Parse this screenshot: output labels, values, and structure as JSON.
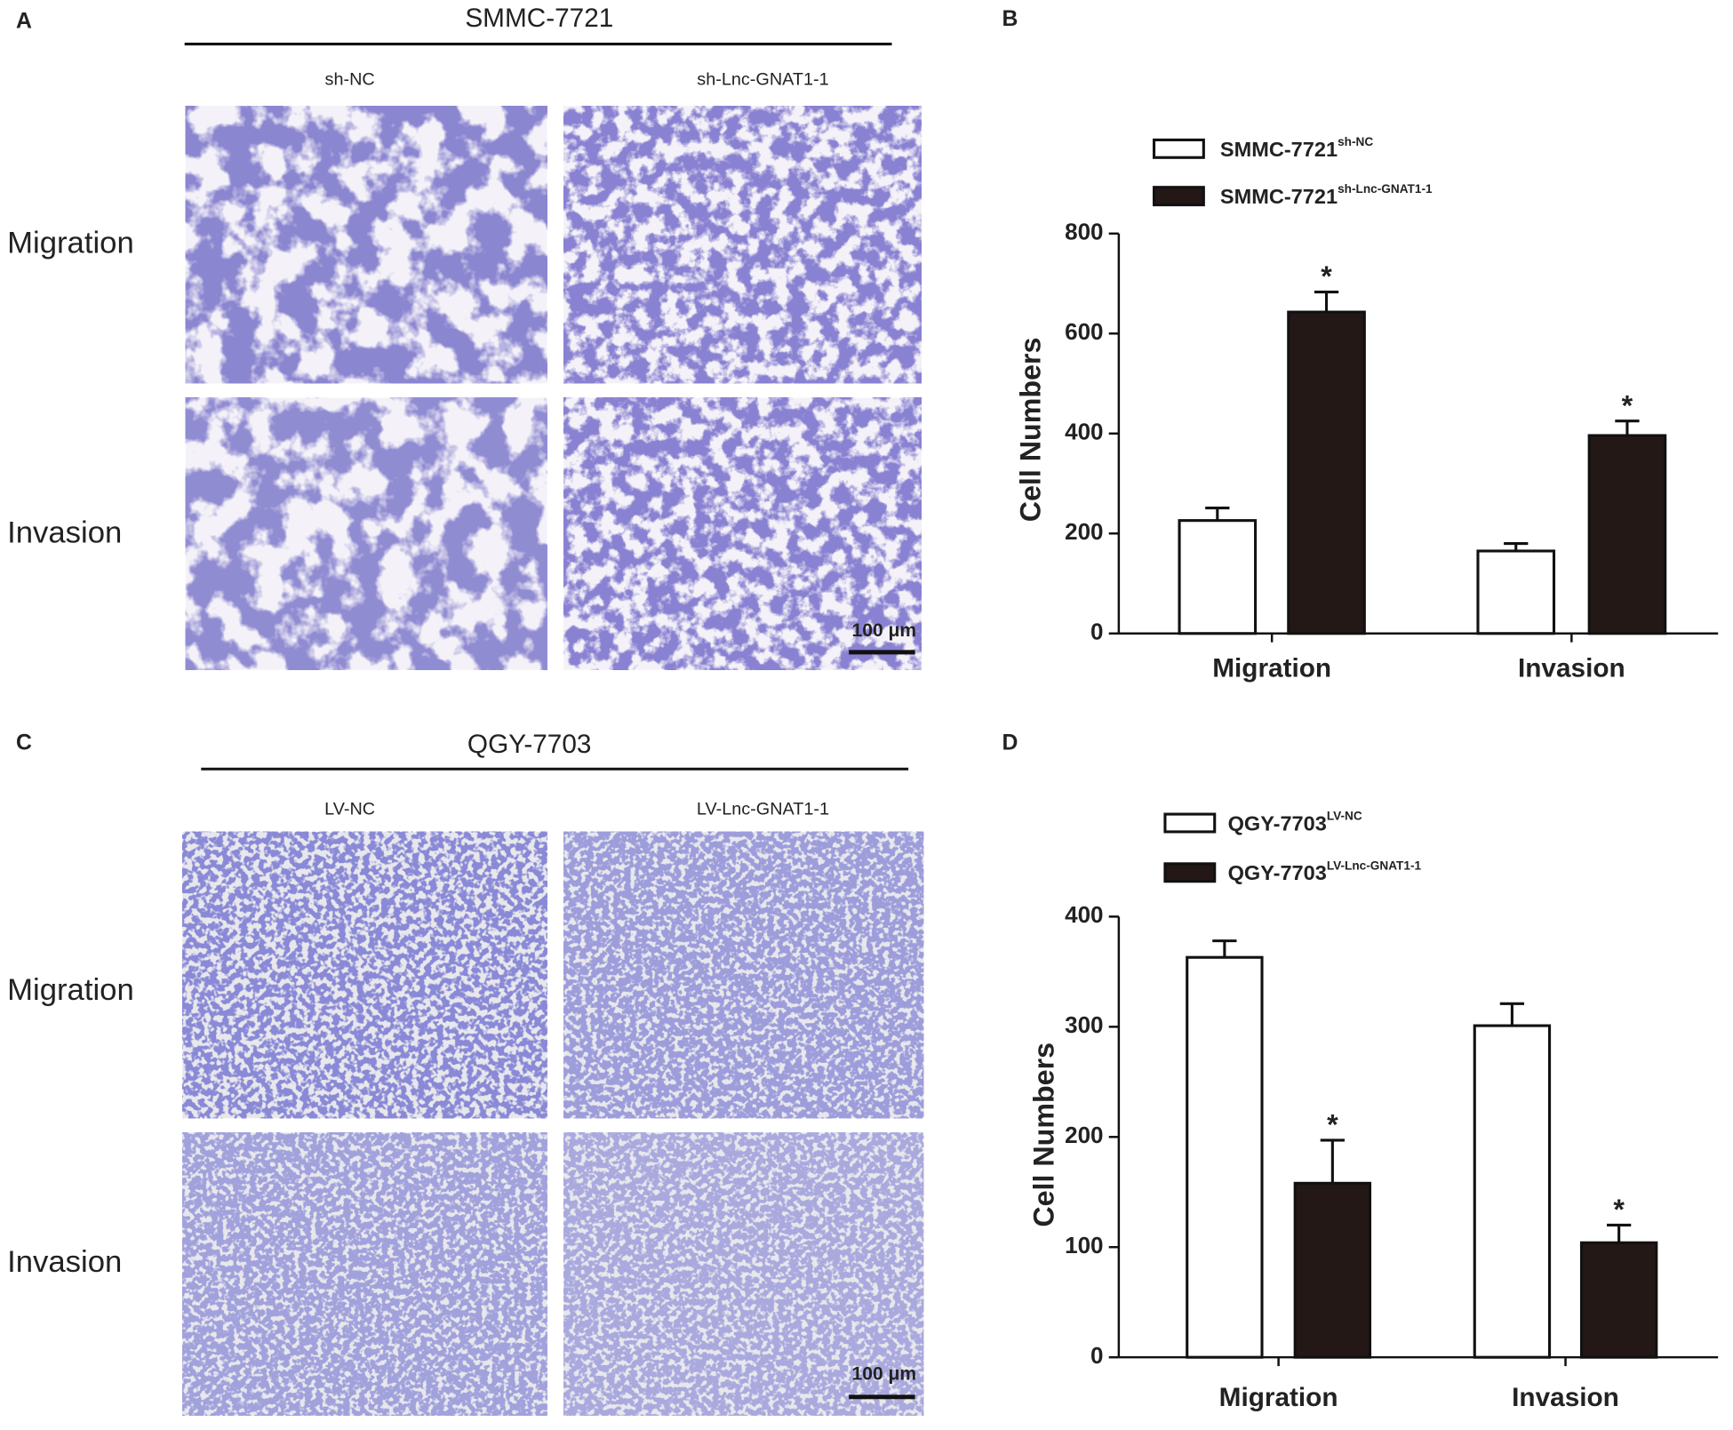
{
  "panels": [
    {
      "label": "A",
      "cell_line": "SMMC-7721",
      "columns": [
        "sh-NC",
        "sh-Lnc-GNAT1-1"
      ],
      "rows": [
        "Migration",
        "Invasion"
      ],
      "scale_bar": "100 μm"
    },
    {
      "label": "C",
      "cell_line": "QGY-7703",
      "columns": [
        "LV-NC",
        "LV-Lnc-GNAT1-1"
      ],
      "rows": [
        "Migration",
        "Invasion"
      ],
      "scale_bar": "100 μm"
    }
  ],
  "chart_data": [
    {
      "panel_label": "B",
      "type": "bar",
      "y_label": "Cell Numbers",
      "categories": [
        "Migration",
        "Invasion"
      ],
      "series": [
        {
          "name": "SMMC-7721",
          "superscript": "sh-NC",
          "color": "#ffffff",
          "values": [
            226,
            165
          ],
          "errors": [
            25,
            15
          ]
        },
        {
          "name": "SMMC-7721",
          "superscript": "sh-Lnc-GNAT1-1",
          "color": "#231815",
          "values": [
            643,
            396
          ],
          "errors": [
            40,
            29
          ],
          "significance": [
            "*",
            "*"
          ]
        }
      ],
      "ylim": [
        0,
        800
      ],
      "yticks": [
        0,
        200,
        400,
        600,
        800
      ]
    },
    {
      "panel_label": "D",
      "type": "bar",
      "y_label": "Cell Numbers",
      "categories": [
        "Migration",
        "Invasion"
      ],
      "series": [
        {
          "name": "QGY-7703",
          "superscript": "LV-NC",
          "color": "#ffffff",
          "values": [
            363,
            301
          ],
          "errors": [
            15,
            20
          ]
        },
        {
          "name": "QGY-7703",
          "superscript": "LV-Lnc-GNAT1-1",
          "color": "#231815",
          "values": [
            158,
            104
          ],
          "errors": [
            39,
            16
          ],
          "significance": [
            "*",
            "*"
          ]
        }
      ],
      "ylim": [
        0,
        400
      ],
      "yticks": [
        0,
        100,
        200,
        300,
        400
      ]
    }
  ]
}
